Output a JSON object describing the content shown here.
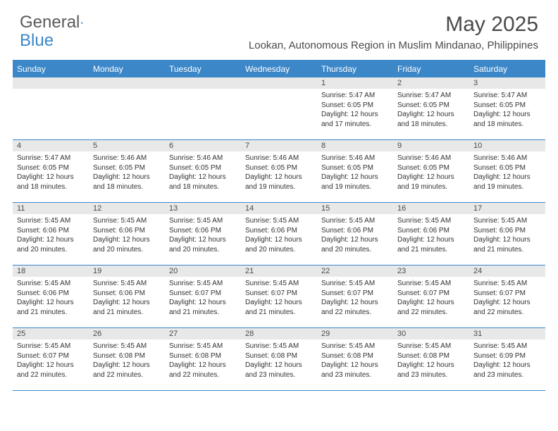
{
  "logo": {
    "text1": "General",
    "text2": "Blue"
  },
  "title": "May 2025",
  "location": "Lookan, Autonomous Region in Muslim Mindanao, Philippines",
  "header_bg": "#3b87c8",
  "header_fg": "#ffffff",
  "daynum_bg": "#e8e8e8",
  "border_color": "#3b87c8",
  "text_color": "#333333",
  "weekdays": [
    "Sunday",
    "Monday",
    "Tuesday",
    "Wednesday",
    "Thursday",
    "Friday",
    "Saturday"
  ],
  "weeks": [
    [
      {
        "n": "",
        "sr": "",
        "ss": "",
        "dl": ""
      },
      {
        "n": "",
        "sr": "",
        "ss": "",
        "dl": ""
      },
      {
        "n": "",
        "sr": "",
        "ss": "",
        "dl": ""
      },
      {
        "n": "",
        "sr": "",
        "ss": "",
        "dl": ""
      },
      {
        "n": "1",
        "sr": "Sunrise: 5:47 AM",
        "ss": "Sunset: 6:05 PM",
        "dl": "Daylight: 12 hours and 17 minutes."
      },
      {
        "n": "2",
        "sr": "Sunrise: 5:47 AM",
        "ss": "Sunset: 6:05 PM",
        "dl": "Daylight: 12 hours and 18 minutes."
      },
      {
        "n": "3",
        "sr": "Sunrise: 5:47 AM",
        "ss": "Sunset: 6:05 PM",
        "dl": "Daylight: 12 hours and 18 minutes."
      }
    ],
    [
      {
        "n": "4",
        "sr": "Sunrise: 5:47 AM",
        "ss": "Sunset: 6:05 PM",
        "dl": "Daylight: 12 hours and 18 minutes."
      },
      {
        "n": "5",
        "sr": "Sunrise: 5:46 AM",
        "ss": "Sunset: 6:05 PM",
        "dl": "Daylight: 12 hours and 18 minutes."
      },
      {
        "n": "6",
        "sr": "Sunrise: 5:46 AM",
        "ss": "Sunset: 6:05 PM",
        "dl": "Daylight: 12 hours and 18 minutes."
      },
      {
        "n": "7",
        "sr": "Sunrise: 5:46 AM",
        "ss": "Sunset: 6:05 PM",
        "dl": "Daylight: 12 hours and 19 minutes."
      },
      {
        "n": "8",
        "sr": "Sunrise: 5:46 AM",
        "ss": "Sunset: 6:05 PM",
        "dl": "Daylight: 12 hours and 19 minutes."
      },
      {
        "n": "9",
        "sr": "Sunrise: 5:46 AM",
        "ss": "Sunset: 6:05 PM",
        "dl": "Daylight: 12 hours and 19 minutes."
      },
      {
        "n": "10",
        "sr": "Sunrise: 5:46 AM",
        "ss": "Sunset: 6:05 PM",
        "dl": "Daylight: 12 hours and 19 minutes."
      }
    ],
    [
      {
        "n": "11",
        "sr": "Sunrise: 5:45 AM",
        "ss": "Sunset: 6:06 PM",
        "dl": "Daylight: 12 hours and 20 minutes."
      },
      {
        "n": "12",
        "sr": "Sunrise: 5:45 AM",
        "ss": "Sunset: 6:06 PM",
        "dl": "Daylight: 12 hours and 20 minutes."
      },
      {
        "n": "13",
        "sr": "Sunrise: 5:45 AM",
        "ss": "Sunset: 6:06 PM",
        "dl": "Daylight: 12 hours and 20 minutes."
      },
      {
        "n": "14",
        "sr": "Sunrise: 5:45 AM",
        "ss": "Sunset: 6:06 PM",
        "dl": "Daylight: 12 hours and 20 minutes."
      },
      {
        "n": "15",
        "sr": "Sunrise: 5:45 AM",
        "ss": "Sunset: 6:06 PM",
        "dl": "Daylight: 12 hours and 20 minutes."
      },
      {
        "n": "16",
        "sr": "Sunrise: 5:45 AM",
        "ss": "Sunset: 6:06 PM",
        "dl": "Daylight: 12 hours and 21 minutes."
      },
      {
        "n": "17",
        "sr": "Sunrise: 5:45 AM",
        "ss": "Sunset: 6:06 PM",
        "dl": "Daylight: 12 hours and 21 minutes."
      }
    ],
    [
      {
        "n": "18",
        "sr": "Sunrise: 5:45 AM",
        "ss": "Sunset: 6:06 PM",
        "dl": "Daylight: 12 hours and 21 minutes."
      },
      {
        "n": "19",
        "sr": "Sunrise: 5:45 AM",
        "ss": "Sunset: 6:06 PM",
        "dl": "Daylight: 12 hours and 21 minutes."
      },
      {
        "n": "20",
        "sr": "Sunrise: 5:45 AM",
        "ss": "Sunset: 6:07 PM",
        "dl": "Daylight: 12 hours and 21 minutes."
      },
      {
        "n": "21",
        "sr": "Sunrise: 5:45 AM",
        "ss": "Sunset: 6:07 PM",
        "dl": "Daylight: 12 hours and 21 minutes."
      },
      {
        "n": "22",
        "sr": "Sunrise: 5:45 AM",
        "ss": "Sunset: 6:07 PM",
        "dl": "Daylight: 12 hours and 22 minutes."
      },
      {
        "n": "23",
        "sr": "Sunrise: 5:45 AM",
        "ss": "Sunset: 6:07 PM",
        "dl": "Daylight: 12 hours and 22 minutes."
      },
      {
        "n": "24",
        "sr": "Sunrise: 5:45 AM",
        "ss": "Sunset: 6:07 PM",
        "dl": "Daylight: 12 hours and 22 minutes."
      }
    ],
    [
      {
        "n": "25",
        "sr": "Sunrise: 5:45 AM",
        "ss": "Sunset: 6:07 PM",
        "dl": "Daylight: 12 hours and 22 minutes."
      },
      {
        "n": "26",
        "sr": "Sunrise: 5:45 AM",
        "ss": "Sunset: 6:08 PM",
        "dl": "Daylight: 12 hours and 22 minutes."
      },
      {
        "n": "27",
        "sr": "Sunrise: 5:45 AM",
        "ss": "Sunset: 6:08 PM",
        "dl": "Daylight: 12 hours and 22 minutes."
      },
      {
        "n": "28",
        "sr": "Sunrise: 5:45 AM",
        "ss": "Sunset: 6:08 PM",
        "dl": "Daylight: 12 hours and 23 minutes."
      },
      {
        "n": "29",
        "sr": "Sunrise: 5:45 AM",
        "ss": "Sunset: 6:08 PM",
        "dl": "Daylight: 12 hours and 23 minutes."
      },
      {
        "n": "30",
        "sr": "Sunrise: 5:45 AM",
        "ss": "Sunset: 6:08 PM",
        "dl": "Daylight: 12 hours and 23 minutes."
      },
      {
        "n": "31",
        "sr": "Sunrise: 5:45 AM",
        "ss": "Sunset: 6:09 PM",
        "dl": "Daylight: 12 hours and 23 minutes."
      }
    ]
  ]
}
